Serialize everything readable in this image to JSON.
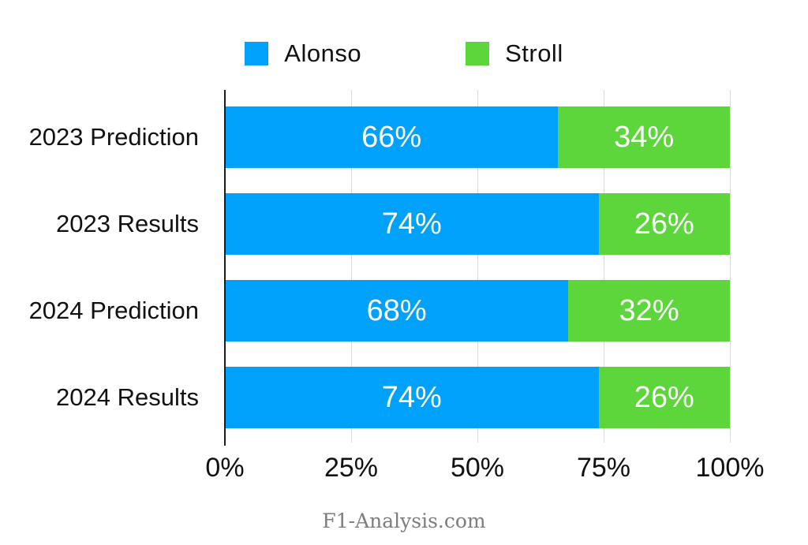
{
  "legend": {
    "items": [
      {
        "label": "Alonso",
        "color": "#00a1fa"
      },
      {
        "label": "Stroll",
        "color": "#5cd63a"
      }
    ]
  },
  "chart_data": {
    "type": "bar",
    "orientation": "horizontal",
    "stacked": true,
    "categories": [
      "2023 Prediction",
      "2023 Results",
      "2024 Prediction",
      "2024 Results"
    ],
    "series": [
      {
        "name": "Alonso",
        "color": "#00a1fa",
        "values": [
          66,
          74,
          68,
          74
        ]
      },
      {
        "name": "Stroll",
        "color": "#5cd63a",
        "values": [
          34,
          26,
          32,
          26
        ]
      }
    ],
    "value_suffix": "%",
    "xlim": [
      0,
      100
    ],
    "x_ticks": [
      {
        "label": "0%",
        "value": 0
      },
      {
        "label": "25%",
        "value": 25
      },
      {
        "label": "50%",
        "value": 50
      },
      {
        "label": "75%",
        "value": 75
      },
      {
        "label": "100%",
        "value": 100
      }
    ],
    "grid": true,
    "legend_position": "top",
    "colors": {
      "grid": "#d8d8d8",
      "axis": "#1c1c1c",
      "bar_label_text": "#ffffff"
    }
  },
  "footer": {
    "text": "F1-Analysis.com"
  }
}
